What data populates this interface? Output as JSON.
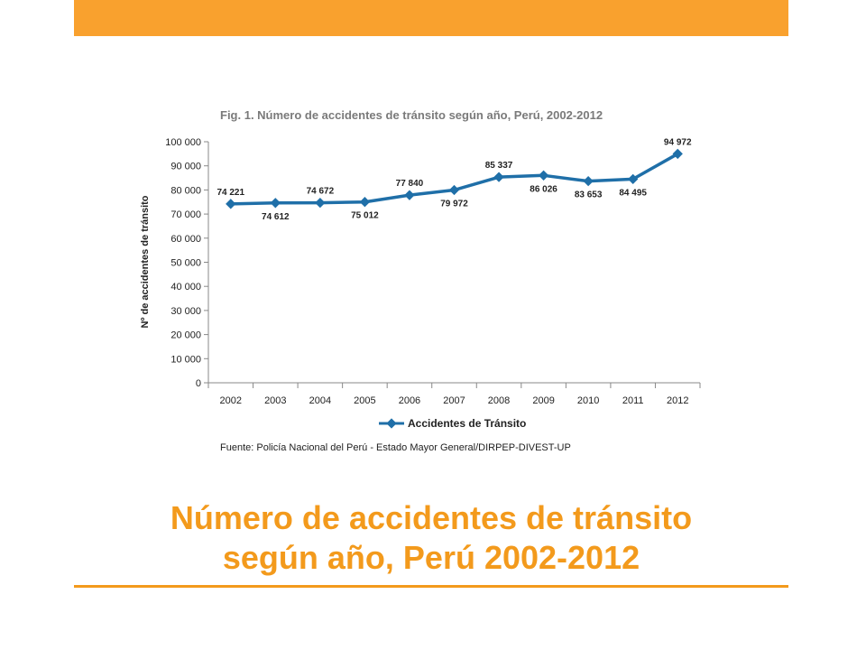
{
  "slide": {
    "title_line1": "Número de accidentes de tránsito",
    "title_line2": "según año, Perú 2002-2012",
    "accent_color": "#F39A1C",
    "top_bar_color": "#F9A12E"
  },
  "chart_data": {
    "type": "line",
    "title": "Fig. 1. Número de accidentes de tránsito según año, Perú, 2002-2012",
    "xlabel": "",
    "ylabel": "Nº de accidentes de tránsito",
    "categories": [
      "2002",
      "2003",
      "2004",
      "2005",
      "2006",
      "2007",
      "2008",
      "2009",
      "2010",
      "2011",
      "2012"
    ],
    "series": [
      {
        "name": "Accidentes de Tránsito",
        "color": "#1F6FA8",
        "values": [
          74221,
          74612,
          74672,
          75012,
          77840,
          79972,
          85337,
          86026,
          83653,
          84495,
          94972
        ],
        "labels": [
          "74 221",
          "74 612",
          "74 672",
          "75 012",
          "77 840",
          "79 972",
          "85 337",
          "86 026",
          "83 653",
          "84 495",
          "94 972"
        ]
      }
    ],
    "ylim": [
      0,
      100000
    ],
    "yticks": [
      "0",
      "10 000",
      "20 000",
      "30 000",
      "40 000",
      "50 000",
      "60 000",
      "70 000",
      "80 000",
      "90 000",
      "100 000"
    ],
    "grid": false,
    "legend": "bottom",
    "source": "Fuente: Policía Nacional del Perú - Estado Mayor General/DIRPEP-DIVEST-UP"
  }
}
